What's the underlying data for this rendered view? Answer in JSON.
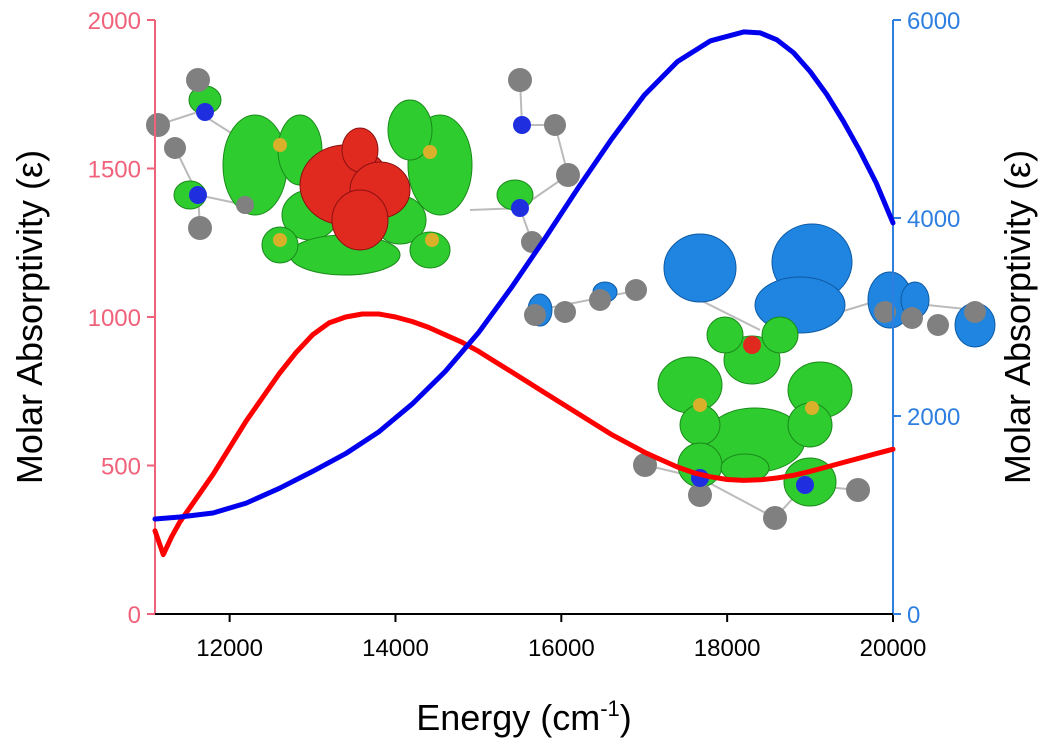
{
  "chart_data": {
    "type": "line",
    "title": "",
    "xlabel": "Energy (cm",
    "xlabel_sup": "-1",
    "xlabel_close": ")",
    "ylabel_left": "Molar Absorptivity (ε)",
    "ylabel_right": "Molar Absorptivity (ε)",
    "xlim": [
      11100,
      20000
    ],
    "ylim_left": [
      0,
      2000
    ],
    "ylim_right": [
      0,
      6000
    ],
    "x_ticks": [
      12000,
      14000,
      16000,
      18000,
      20000
    ],
    "y_ticks_left": [
      0,
      500,
      1000,
      1500,
      2000
    ],
    "y_ticks_right": [
      0,
      2000,
      4000,
      6000
    ],
    "grid": false,
    "colors": {
      "left_axis": "#f0627a",
      "right_axis": "#2f7fe0",
      "series_red": "#ff0000",
      "series_blue": "#0000ee"
    },
    "series": [
      {
        "axis": "left",
        "color": "#ff0000",
        "x": [
          11100,
          11200,
          11300,
          11400,
          11500,
          11600,
          11800,
          12000,
          12200,
          12400,
          12600,
          12800,
          13000,
          13200,
          13400,
          13600,
          13800,
          14000,
          14200,
          14400,
          14600,
          14800,
          15000,
          15200,
          15400,
          15600,
          15800,
          16000,
          16200,
          16400,
          16600,
          16800,
          17000,
          17200,
          17400,
          17600,
          17800,
          18000,
          18200,
          18400,
          18600,
          18800,
          19000,
          19200,
          19400,
          19600,
          19800,
          20000
        ],
        "values": [
          280,
          200,
          260,
          310,
          350,
          390,
          470,
          560,
          650,
          730,
          810,
          880,
          940,
          980,
          1000,
          1010,
          1010,
          1000,
          985,
          965,
          940,
          915,
          885,
          850,
          815,
          780,
          745,
          710,
          675,
          640,
          605,
          575,
          545,
          520,
          495,
          475,
          462,
          453,
          450,
          452,
          458,
          467,
          480,
          495,
          510,
          525,
          540,
          555
        ]
      },
      {
        "axis": "right",
        "color": "#0000ee",
        "x": [
          11100,
          11400,
          11800,
          12200,
          12600,
          13000,
          13400,
          13800,
          14200,
          14600,
          15000,
          15400,
          15800,
          16200,
          16600,
          17000,
          17400,
          17800,
          18200,
          18400,
          18600,
          18800,
          19000,
          19200,
          19400,
          19600,
          19800,
          20000
        ],
        "values": [
          960,
          980,
          1020,
          1120,
          1270,
          1440,
          1620,
          1840,
          2120,
          2450,
          2840,
          3300,
          3790,
          4300,
          4790,
          5240,
          5580,
          5790,
          5880,
          5870,
          5800,
          5670,
          5480,
          5250,
          4980,
          4680,
          4350,
          3950
        ]
      }
    ]
  }
}
